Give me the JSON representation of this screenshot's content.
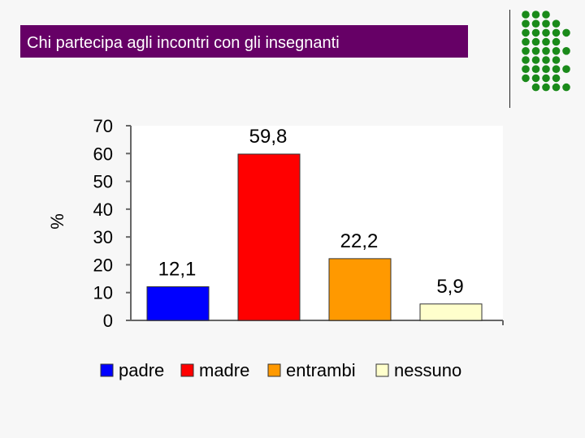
{
  "header": {
    "title": "Chi partecipa agli incontri con gli insegnanti"
  },
  "colors": {
    "title_bg": "#660066",
    "dots": "#1a8a1a"
  },
  "chart_data": {
    "type": "bar",
    "title": "",
    "xlabel": "",
    "ylabel": "%",
    "ylim": [
      0,
      70
    ],
    "yticks": [
      "0",
      "10",
      "20",
      "30",
      "40",
      "50",
      "60",
      "70"
    ],
    "grid": false,
    "legend_position": "bottom",
    "categories": [
      "padre",
      "madre",
      "entrambi",
      "nessuno"
    ],
    "values": [
      12.1,
      59.8,
      22.2,
      5.9
    ],
    "value_labels": [
      "12,1",
      "59,8",
      "22,2",
      "5,9"
    ],
    "colors": [
      "#0000ff",
      "#ff0000",
      "#ff9900",
      "#ffffcc"
    ]
  }
}
